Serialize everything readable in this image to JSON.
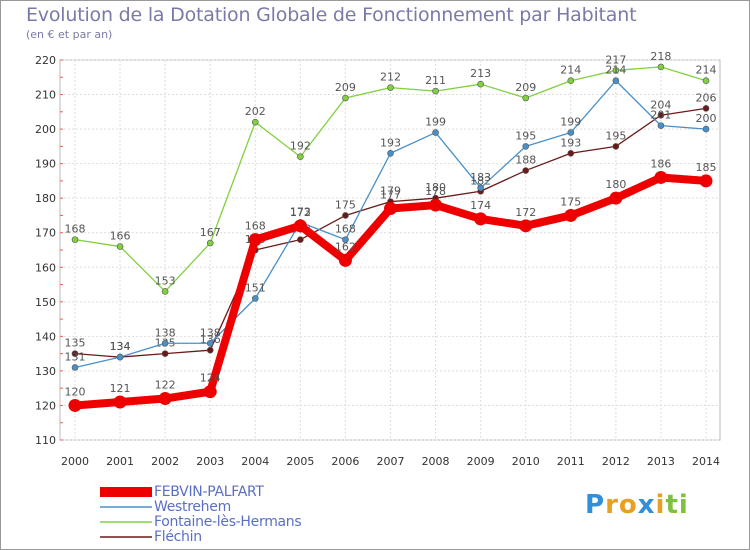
{
  "chart_data": {
    "type": "line",
    "title": "Evolution de la Dotation Globale de Fonctionnement par Habitant",
    "subtitle": "(en € et par an)",
    "xlabel": "",
    "ylabel": "",
    "ylim": [
      110,
      220
    ],
    "yticks": [
      110,
      120,
      130,
      140,
      150,
      160,
      170,
      180,
      190,
      200,
      210,
      220
    ],
    "categories": [
      "2000",
      "2001",
      "2002",
      "2003",
      "2004",
      "2005",
      "2006",
      "2007",
      "2008",
      "2009",
      "2010",
      "2011",
      "2012",
      "2013",
      "2014"
    ],
    "grid": true,
    "legend_position": "bottom-left",
    "series": [
      {
        "name": "FEBVIN-PALFART",
        "color": "#ee0000",
        "values": [
          120,
          121,
          122,
          124,
          168,
          172,
          162,
          177,
          178,
          174,
          172,
          175,
          180,
          186,
          185
        ]
      },
      {
        "name": "Westrehem",
        "color": "#4a90c8",
        "values": [
          131,
          134,
          138,
          138,
          151,
          173,
          168,
          193,
          199,
          183,
          195,
          199,
          214,
          201,
          200
        ]
      },
      {
        "name": "Fontaine-lès-Hermans",
        "color": "#80d040",
        "values": [
          168,
          166,
          153,
          167,
          202,
          192,
          209,
          212,
          211,
          213,
          209,
          214,
          217,
          218,
          214
        ]
      },
      {
        "name": "Fléchin",
        "color": "#6b1a1a",
        "values": [
          135,
          134,
          135,
          136,
          165,
          168,
          175,
          179,
          180,
          182,
          188,
          193,
          195,
          204,
          206
        ]
      }
    ]
  },
  "legend": {
    "items": [
      "FEBVIN-PALFART",
      "Westrehem",
      "Fontaine-lès-Hermans",
      "Fléchin"
    ]
  },
  "logo": {
    "letters": [
      "P",
      "r",
      "o",
      "x",
      "i",
      "t",
      "i"
    ],
    "colors": [
      "#2f8fd8",
      "#e8a020",
      "#e8a020",
      "#2f8fd8",
      "#e8a020",
      "#80c040",
      "#80c040"
    ]
  }
}
